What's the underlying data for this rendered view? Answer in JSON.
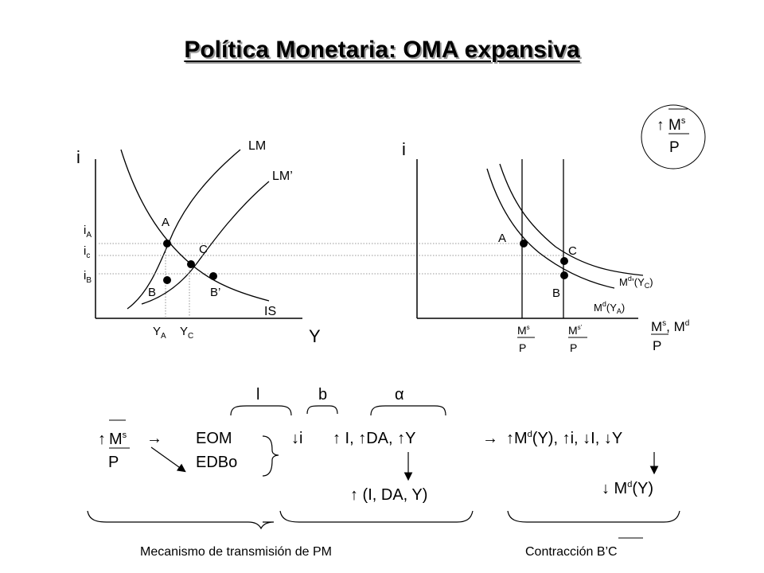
{
  "title": "Política Monetaria: OMA expansiva",
  "is_lm_graph": {
    "y_axis_label": "i",
    "x_axis_label": "Y",
    "curve_lm": "LM",
    "curve_lm_prime": "LM’",
    "curve_is": "IS",
    "point_a": "A",
    "point_b": "B",
    "point_b_prime": "B’",
    "point_c": "C",
    "rate_a": "i",
    "rate_a_sub": "A",
    "rate_c": "i",
    "rate_c_sub": "c",
    "rate_b": "i",
    "rate_b_sub": "B",
    "output_a": "Y",
    "output_a_sub": "A",
    "output_c": "Y",
    "output_c_sub": "C"
  },
  "money_market_graph": {
    "y_axis_label": "i",
    "x_axis_label": "M",
    "x_axis_sup_s": "s",
    "x_axis_mid": ", M",
    "x_axis_sup_d": "d",
    "x_axis_den": "P",
    "point_a": "A",
    "point_b": "B",
    "point_c": "C",
    "supply_1_num": "M",
    "supply_1_sup": "s",
    "supply_1_den": "P",
    "supply_2_num": "M",
    "supply_2_sup": "s’",
    "supply_2_den": "P",
    "demand_c_pre": "M",
    "demand_c_sup": "d",
    "demand_c_post": "’(Y",
    "demand_c_sub": "C",
    "demand_c_end": ")",
    "demand_a_pre": "M",
    "demand_a_sup": "d",
    "demand_a_post": "(Y",
    "demand_a_sub": "A",
    "demand_a_end": ")"
  },
  "badge": {
    "arrow": "↑",
    "num": "M",
    "sup": "s",
    "den": "P"
  },
  "mechanism": {
    "greek_l": "l",
    "greek_b": "b",
    "greek_alpha": "α",
    "ms_num": "M",
    "ms_sup": "s",
    "ms_den": "P",
    "arrow_right": "→",
    "eom": "EOM",
    "edbo": "EDBo",
    "down_i": "i",
    "up_list": " I, ",
    "up_da": "DA, ",
    "up_y": "Y",
    "effect": " (I, DA, Y)",
    "md_y": "M",
    "md_sup": "d",
    "md_rest": "(Y), ",
    "md_i": "i, ",
    "md_I": "I, ",
    "md_Y": "Y",
    "md_result_pre": " M",
    "md_result_sup": "d",
    "md_result_post": "(Y)",
    "caption_left": "Mecanismo de transmisión de PM",
    "caption_right_pre": "Contracción ",
    "caption_right_bc": "B’C"
  }
}
